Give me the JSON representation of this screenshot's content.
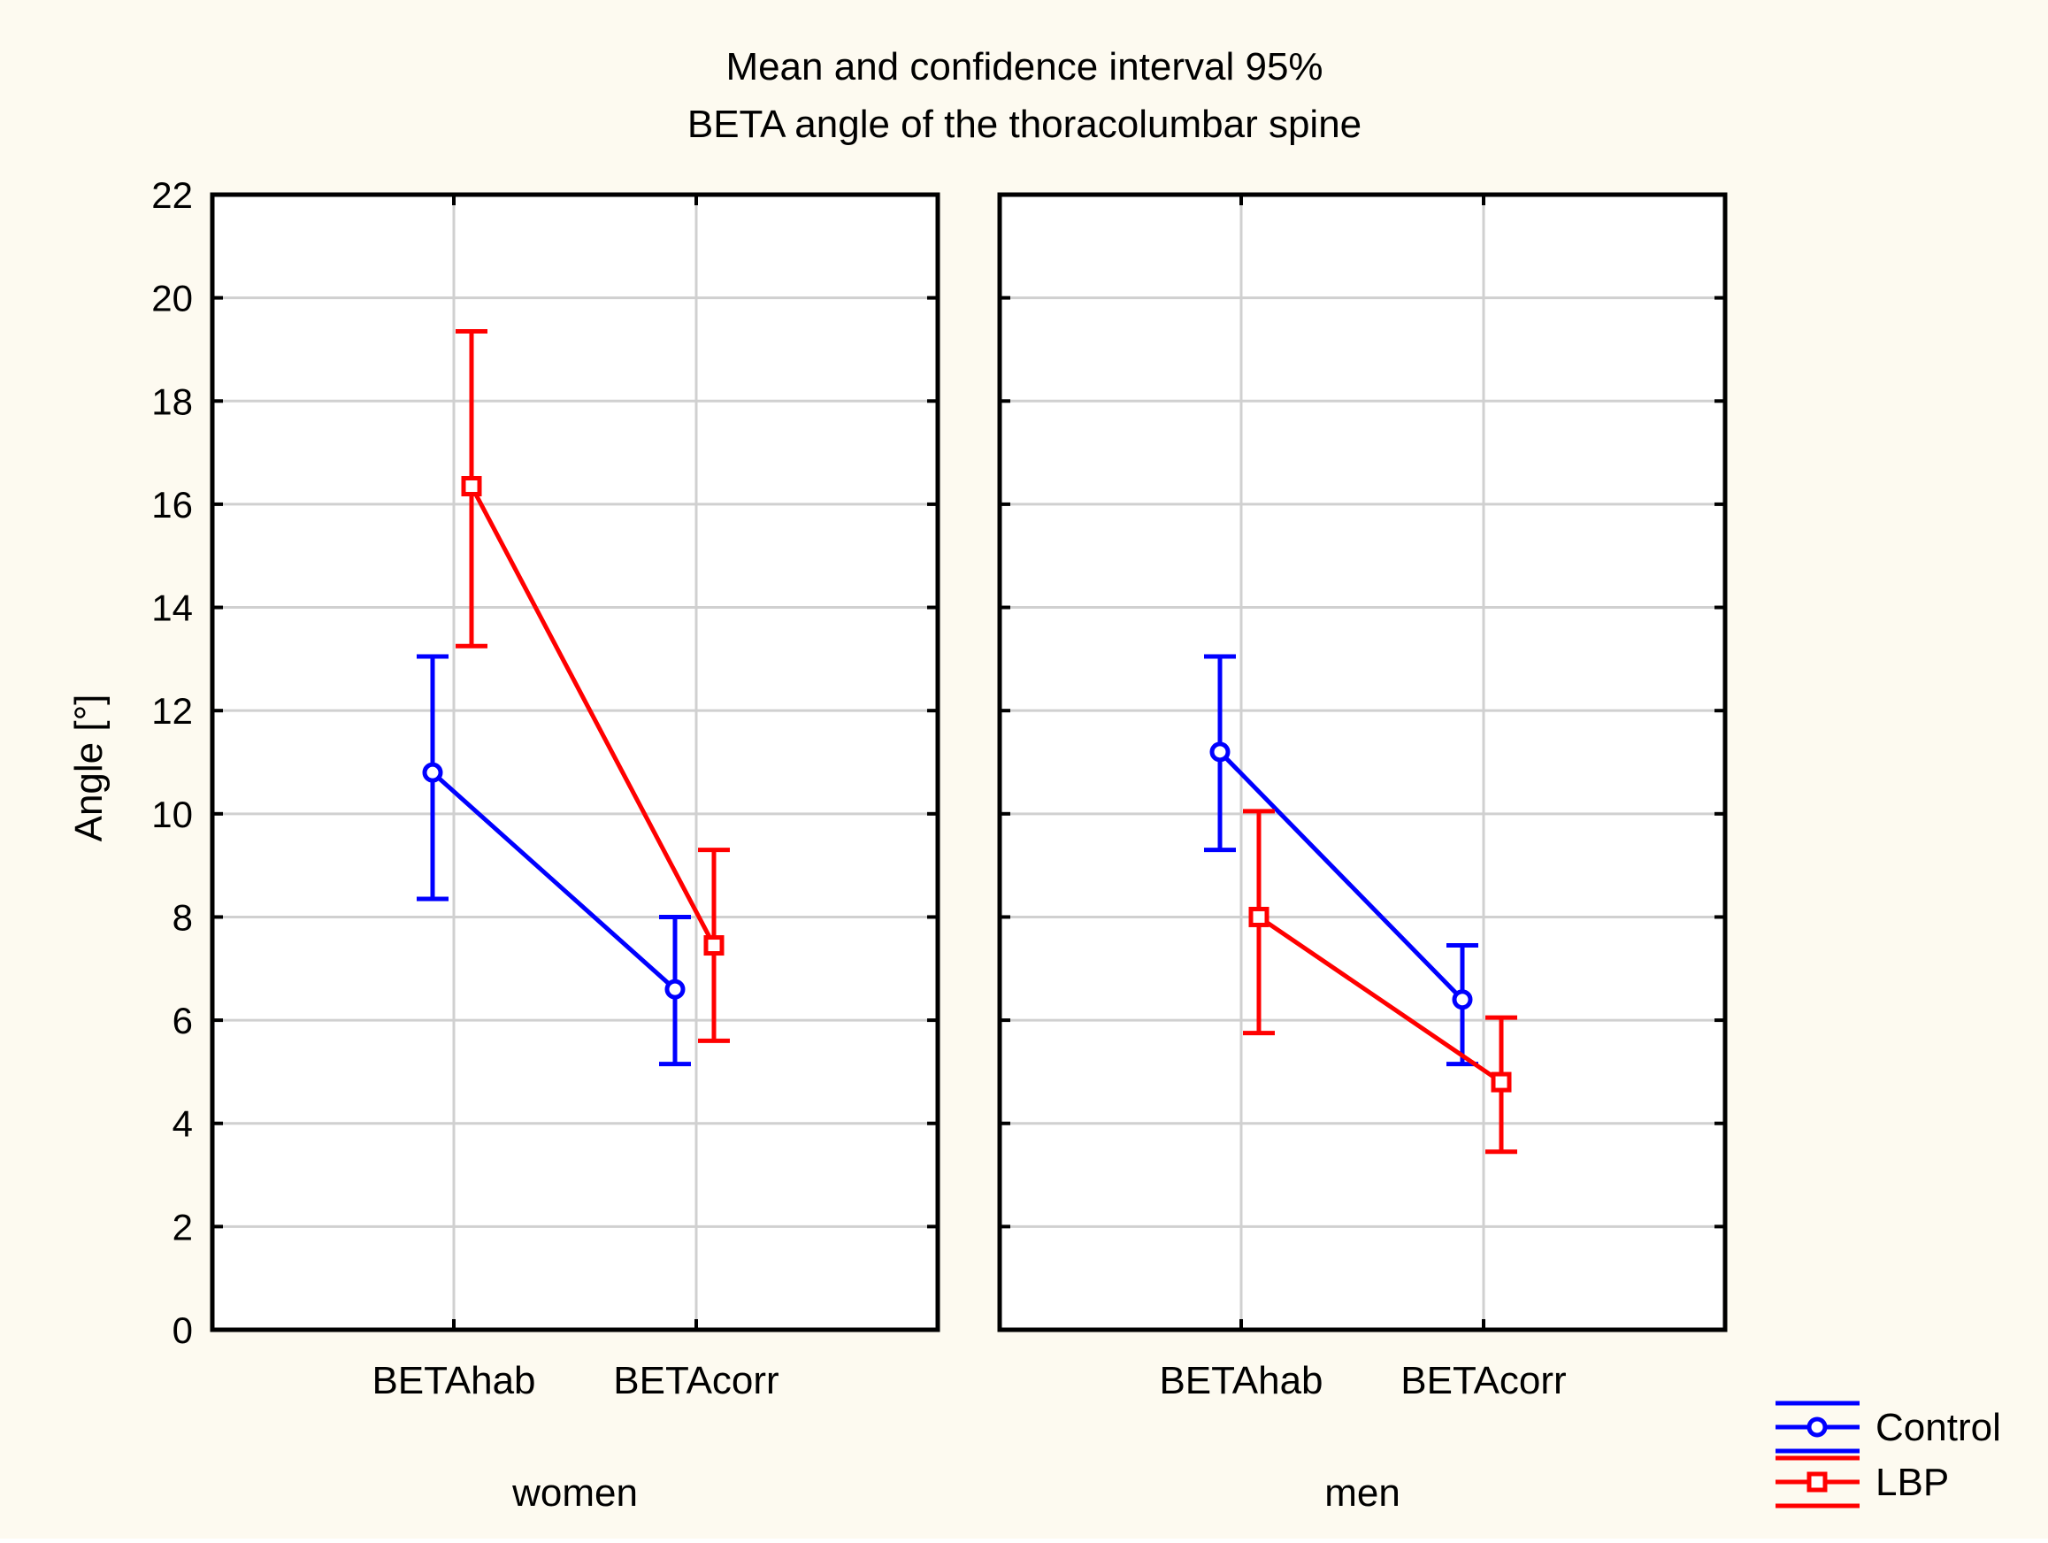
{
  "chart_data": {
    "type": "line",
    "title_line1": "Mean and confidence interval 95%",
    "title_line2": "BETA angle of the thoracolumbar spine",
    "ylabel": "Angle [°]",
    "ylim": [
      0,
      22
    ],
    "yticks": [
      "0",
      "2",
      "4",
      "6",
      "8",
      "10",
      "12",
      "14",
      "16",
      "18",
      "20",
      "22"
    ],
    "grid": true,
    "categories": [
      "BETAhab",
      "BETAcorr"
    ],
    "background_color": "#fdfaf0",
    "legend": {
      "position": "bottom-right",
      "items": [
        {
          "name": "Control",
          "color": "#0000ff",
          "marker": "circle"
        },
        {
          "name": "LBP",
          "color": "#ff0000",
          "marker": "square"
        }
      ]
    },
    "panels": [
      {
        "label": "women",
        "series": [
          {
            "name": "Control",
            "color": "#0000ff",
            "marker": "circle",
            "means": [
              10.8,
              6.6
            ],
            "lower": [
              8.35,
              5.15
            ],
            "upper": [
              13.05,
              8.0
            ]
          },
          {
            "name": "LBP",
            "color": "#ff0000",
            "marker": "square",
            "means": [
              16.35,
              7.45
            ],
            "lower": [
              13.25,
              5.6
            ],
            "upper": [
              19.35,
              9.3
            ]
          }
        ]
      },
      {
        "label": "men",
        "series": [
          {
            "name": "Control",
            "color": "#0000ff",
            "marker": "circle",
            "means": [
              11.2,
              6.4
            ],
            "lower": [
              9.3,
              5.15
            ],
            "upper": [
              13.05,
              7.45
            ]
          },
          {
            "name": "LBP",
            "color": "#ff0000",
            "marker": "square",
            "means": [
              8.0,
              4.8
            ],
            "lower": [
              5.75,
              3.45
            ],
            "upper": [
              10.05,
              6.05
            ]
          }
        ]
      }
    ]
  }
}
